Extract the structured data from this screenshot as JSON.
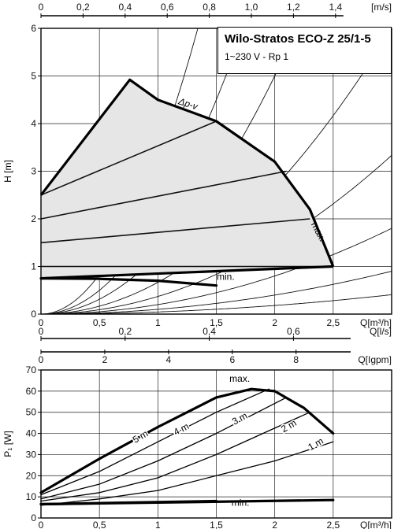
{
  "pump": {
    "title": "Wilo-Stratos ECO-Z 25/1-5",
    "subtitle": "1~230 V - Rp 1"
  },
  "axes": {
    "top_unit": "[m/s]",
    "h_label": "H [m]",
    "q_m3h_label": "Q[m³/h]",
    "q_ls_label": "Q[l/s]",
    "q_igpm_label": "Q[Igpm]",
    "p_label": "P₁ [W]"
  },
  "chart_data": [
    {
      "type": "line",
      "title": "",
      "xlabel": "Q[m³/h]",
      "ylabel": "H [m]",
      "xlim": [
        0,
        3.0
      ],
      "ylim": [
        0,
        6
      ],
      "grid": true,
      "x_ticks": [
        "0",
        "0,5",
        "1",
        "1,5",
        "2",
        "2,5"
      ],
      "x_tick_values": [
        0,
        0.5,
        1,
        1.5,
        2,
        2.5
      ],
      "y_ticks": [
        "0",
        "1",
        "2",
        "3",
        "4",
        "5",
        "6"
      ],
      "y_tick_values": [
        0,
        1,
        2,
        3,
        4,
        5,
        6
      ],
      "top_axis": {
        "label": "[m/s]",
        "ticks": [
          "0",
          "0,2",
          "0,4",
          "0,6",
          "0,8",
          "1,0",
          "1,2",
          "1,4"
        ],
        "tick_values": [
          0,
          0.2,
          0.4,
          0.6,
          0.8,
          1.0,
          1.2,
          1.4
        ],
        "m3h_per_unit": 1.8
      },
      "secondary_axes": [
        {
          "label": "Q[l/s]",
          "ticks": [
            "0",
            "0,2",
            "0,4",
            "0,6"
          ],
          "tick_values": [
            0,
            0.2,
            0.4,
            0.6
          ],
          "m3h_per_unit": 3.6
        },
        {
          "label": "Q[Igpm]",
          "ticks": [
            "0",
            "2",
            "4",
            "6",
            "8"
          ],
          "tick_values": [
            0,
            2,
            4,
            6,
            8
          ],
          "m3h_per_unit": 0.2728
        }
      ],
      "region_label": "Δp-v",
      "series": [
        {
          "name": "max.",
          "points": [
            [
              0,
              2.5
            ],
            [
              0.76,
              4.92
            ],
            [
              1.0,
              4.5
            ],
            [
              1.5,
              4.05
            ],
            [
              2.0,
              3.2
            ],
            [
              2.3,
              2.2
            ],
            [
              2.5,
              1.0
            ]
          ]
        },
        {
          "name": "min.",
          "points": [
            [
              0,
              0.75
            ],
            [
              0.5,
              0.74
            ],
            [
              1.0,
              0.7
            ],
            [
              1.5,
              0.6
            ]
          ]
        },
        {
          "name": "",
          "points": [
            [
              0,
              0.75
            ],
            [
              2.5,
              1.0
            ]
          ]
        }
      ],
      "pv_lines": [
        {
          "points": [
            [
              0,
              1.0
            ],
            [
              2.5,
              1.0
            ]
          ]
        },
        {
          "points": [
            [
              0,
              1.5
            ],
            [
              2.3,
              2.0
            ]
          ]
        },
        {
          "points": [
            [
              0,
              2.0
            ],
            [
              2.1,
              3.0
            ]
          ]
        },
        {
          "points": [
            [
              0,
              2.5
            ],
            [
              1.5,
              4.05
            ]
          ]
        }
      ],
      "system_curve_k": [
        22.1,
        10.0,
        5.0,
        2.7,
        1.5,
        0.8,
        0.5,
        0.3
      ]
    },
    {
      "type": "line",
      "title": "",
      "xlabel": "Q[m³/h]",
      "ylabel": "P₁ [W]",
      "xlim": [
        0,
        3.0
      ],
      "ylim": [
        0,
        70
      ],
      "grid": true,
      "x_ticks": [
        "0",
        "0,5",
        "1",
        "1,5",
        "2",
        "2,5"
      ],
      "x_tick_values": [
        0,
        0.5,
        1,
        1.5,
        2,
        2.5
      ],
      "y_ticks": [
        "0",
        "10",
        "20",
        "30",
        "40",
        "50",
        "60",
        "70"
      ],
      "y_tick_values": [
        0,
        10,
        20,
        30,
        40,
        50,
        60,
        70
      ],
      "series": [
        {
          "name": "max.",
          "points": [
            [
              0,
              12
            ],
            [
              0.5,
              28
            ],
            [
              1.0,
              43
            ],
            [
              1.5,
              57
            ],
            [
              1.8,
              61
            ],
            [
              2.0,
              60
            ],
            [
              2.25,
              52
            ],
            [
              2.5,
              40
            ]
          ]
        },
        {
          "name": "5 m",
          "points": [
            [
              0,
              12
            ],
            [
              0.5,
              28
            ],
            [
              1.0,
              43
            ],
            [
              1.5,
              57
            ],
            [
              1.8,
              61
            ]
          ]
        },
        {
          "name": "4 m",
          "points": [
            [
              0,
              11
            ],
            [
              0.5,
              22
            ],
            [
              1.0,
              36
            ],
            [
              1.5,
              50
            ],
            [
              1.95,
              61
            ]
          ]
        },
        {
          "name": "3 m",
          "points": [
            [
              0,
              9
            ],
            [
              0.5,
              16
            ],
            [
              1.0,
              27
            ],
            [
              1.5,
              40
            ],
            [
              2.1,
              57
            ]
          ]
        },
        {
          "name": "2 m",
          "points": [
            [
              0,
              8
            ],
            [
              0.5,
              12
            ],
            [
              1.0,
              19
            ],
            [
              1.5,
              30
            ],
            [
              2.3,
              50
            ]
          ]
        },
        {
          "name": "1 m",
          "points": [
            [
              0,
              6
            ],
            [
              0.5,
              9
            ],
            [
              1.0,
              13
            ],
            [
              1.5,
              20
            ],
            [
              2.0,
              27
            ],
            [
              2.5,
              36
            ]
          ]
        },
        {
          "name": "min.",
          "points": [
            [
              0,
              6.5
            ],
            [
              1.5,
              8
            ]
          ]
        },
        {
          "name": "",
          "points": [
            [
              0,
              6.5
            ],
            [
              2.5,
              8.5
            ]
          ]
        }
      ]
    }
  ]
}
